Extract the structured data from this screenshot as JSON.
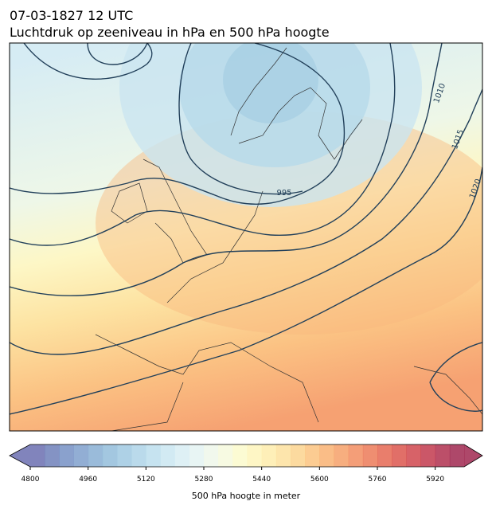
{
  "header": {
    "date": "07-03-1827 12 UTC",
    "title": "Luchtdruk op zeeniveau in hPa en 500 hPa hoogte"
  },
  "map": {
    "contour_labels": [
      995,
      1010,
      1015,
      1020
    ]
  },
  "colorbar": {
    "label": "500 hPa hoogte in meter",
    "lim": [
      4800,
      6000
    ],
    "ticks": [
      4800,
      4960,
      5120,
      5280,
      5440,
      5600,
      5760,
      5920
    ],
    "colors": [
      "#6b6fb0",
      "#6f80ba",
      "#7690c4",
      "#7fa0cc",
      "#88afd4",
      "#93bddb",
      "#a0c9e2",
      "#aed4e8",
      "#bcdeed",
      "#cae6f1",
      "#d8edf3",
      "#e4f3f2",
      "#eef7ea",
      "#f6f9dd",
      "#fcfacb",
      "#fef5bb",
      "#feecab",
      "#fde19d",
      "#fcd38e",
      "#fbc37f",
      "#f9b272",
      "#f6a068",
      "#f28d60",
      "#ec7a58",
      "#e56752",
      "#dc564e",
      "#d0474d",
      "#c23a4e",
      "#b0304f",
      "#a02850"
    ]
  }
}
